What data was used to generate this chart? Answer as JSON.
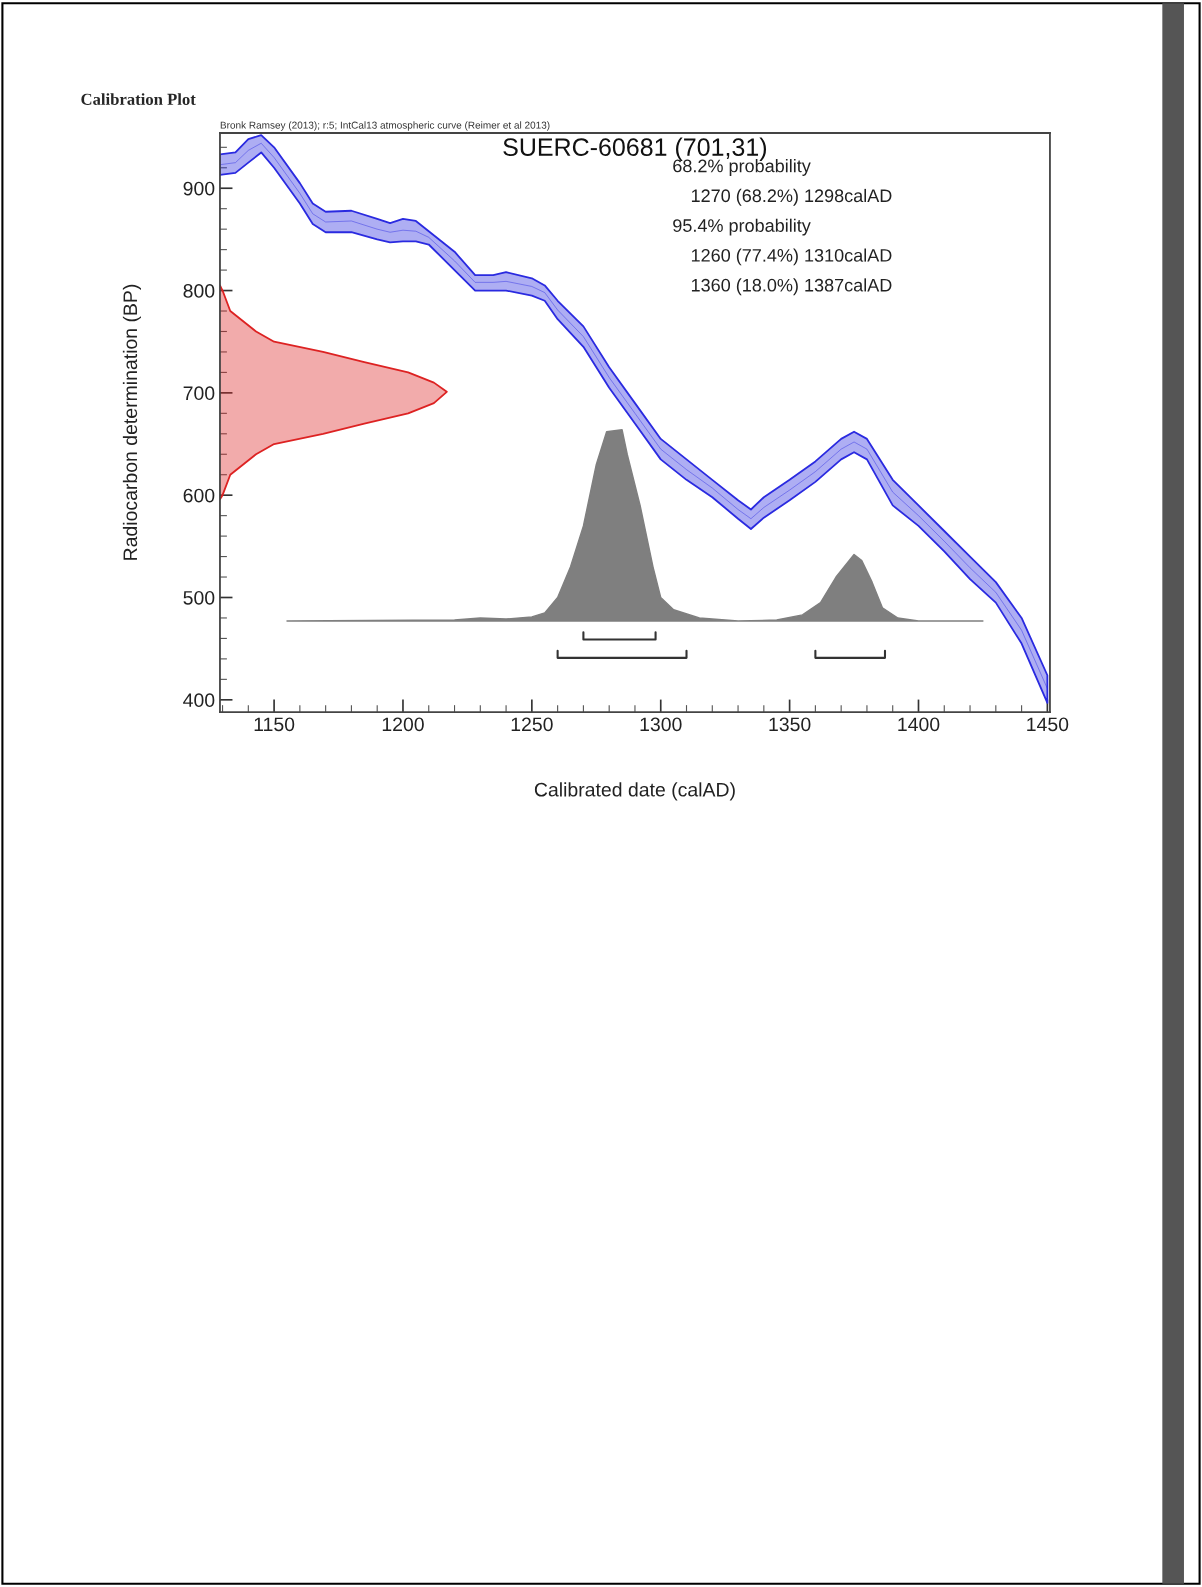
{
  "chart_data": {
    "type": "line",
    "title": "Calibration Plot",
    "subtitle": "Bronk Ramsey (2013); r:5; IntCal13 atmospheric curve (Reimer et al 2013)",
    "xlabel": "Calibrated date (calAD)",
    "ylabel": "Radiocarbon determination (BP)",
    "annotations": [
      "SUERC-60681 (701,31)",
      "68.2% probability",
      "1270 (68.2%) 1298calAD",
      "95.4% probability",
      "1260 (77.4%) 1310calAD",
      "1360 (18.0%) 1387calAD"
    ],
    "xlim": [
      1129,
      1451
    ],
    "ylim": [
      388,
      954
    ],
    "xticks": [
      1150,
      1200,
      1250,
      1300,
      1350,
      1400,
      1450
    ],
    "yticks": [
      400,
      500,
      600,
      700,
      800,
      900
    ],
    "grid": false,
    "legend": false,
    "series": [
      {
        "type": "line",
        "color": "#2a2ae0",
        "x": [
          1129,
          1135,
          1140,
          1145,
          1150,
          1160,
          1165,
          1170,
          1180,
          1190,
          1195,
          1200,
          1205,
          1210,
          1220,
          1228,
          1235,
          1240,
          1250,
          1255,
          1260,
          1270,
          1280,
          1290,
          1300,
          1310,
          1320,
          1330,
          1335,
          1340,
          1350,
          1360,
          1370,
          1375,
          1380,
          1390,
          1400,
          1410,
          1420,
          1430,
          1440,
          1450
        ],
        "values": [
          923,
          925,
          937,
          944,
          930,
          895,
          875,
          867,
          868,
          860,
          857,
          859,
          858,
          852,
          829,
          808,
          808,
          809,
          804,
          798,
          781,
          755,
          715,
          680,
          645,
          625,
          607,
          586,
          577,
          588,
          605,
          623,
          645,
          652,
          645,
          603,
          580,
          555,
          529,
          505,
          468,
          411
        ],
        "upper": [
          933,
          935,
          948,
          952,
          940,
          905,
          885,
          877,
          878,
          870,
          866,
          870,
          868,
          858,
          838,
          815,
          815,
          818,
          812,
          805,
          790,
          765,
          725,
          690,
          655,
          635,
          615,
          595,
          586,
          598,
          615,
          633,
          655,
          662,
          655,
          615,
          590,
          565,
          540,
          515,
          480,
          424
        ],
        "lower": [
          913,
          915,
          925,
          935,
          920,
          885,
          865,
          857,
          857,
          850,
          847,
          848,
          848,
          845,
          820,
          800,
          800,
          800,
          795,
          790,
          772,
          745,
          705,
          670,
          635,
          615,
          598,
          577,
          567,
          578,
          595,
          613,
          635,
          642,
          635,
          590,
          570,
          545,
          518,
          495,
          455,
          397
        ]
      },
      {
        "type": "area",
        "color": "#dd2222",
        "x": [
          1129,
          1130,
          1133,
          1143,
          1150,
          1169,
          1185,
          1202,
          1212,
          1217,
          1212,
          1202,
          1185,
          1169,
          1150,
          1143,
          1133,
          1130,
          1129
        ],
        "values": [
          805,
          800,
          780,
          760,
          750,
          740,
          730,
          720,
          710,
          701,
          690,
          680,
          670,
          660,
          650,
          640,
          620,
          600,
          596
        ]
      },
      {
        "type": "area",
        "color": "#7f7f7f",
        "x": [
          1155,
          1220,
          1230,
          1240,
          1250,
          1255,
          1260,
          1265,
          1270,
          1275,
          1279,
          1285,
          1287,
          1292,
          1297,
          1300,
          1305,
          1315,
          1330,
          1345,
          1355,
          1362,
          1368,
          1375,
          1378,
          1382,
          1386,
          1392,
          1400,
          1425
        ],
        "values": [
          477,
          478,
          480,
          479,
          481,
          485,
          500,
          530,
          570,
          630,
          662,
          664,
          640,
          590,
          530,
          500,
          488,
          480,
          477,
          478,
          483,
          495,
          520,
          542,
          536,
          515,
          490,
          480,
          477,
          477
        ]
      },
      {
        "color": "#333333",
        "x": [
          1270,
          1270,
          1298,
          1298
        ],
        "values": [
          466,
          459,
          459,
          466
        ]
      },
      {
        "color": "#333333",
        "x": [
          1260,
          1260,
          1310,
          1310
        ],
        "values": [
          448,
          441,
          441,
          448
        ]
      },
      {
        "color": "#333333",
        "x": [
          1360,
          1360,
          1387,
          1387
        ],
        "values": [
          448,
          441,
          441,
          448
        ]
      }
    ]
  }
}
